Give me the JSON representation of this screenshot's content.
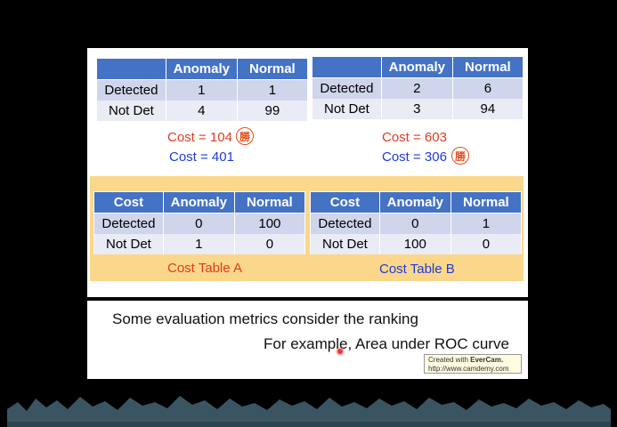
{
  "tables": {
    "top_left": {
      "headers": [
        "",
        "Anomaly",
        "Normal"
      ],
      "rows": [
        [
          "Detected",
          "1",
          "1"
        ],
        [
          "Not Det",
          "4",
          "99"
        ]
      ]
    },
    "top_right": {
      "headers": [
        "",
        "Anomaly",
        "Normal"
      ],
      "rows": [
        [
          "Detected",
          "2",
          "6"
        ],
        [
          "Not Det",
          "3",
          "94"
        ]
      ]
    },
    "cost_a": {
      "headers": [
        "Cost",
        "Anomaly",
        "Normal"
      ],
      "rows": [
        [
          "Detected",
          "0",
          "100"
        ],
        [
          "Not Det",
          "1",
          "0"
        ]
      ]
    },
    "cost_b": {
      "headers": [
        "Cost",
        "Anomaly",
        "Normal"
      ],
      "rows": [
        [
          "Detected",
          "0",
          "1"
        ],
        [
          "Not Det",
          "100",
          "0"
        ]
      ]
    }
  },
  "costs": {
    "left_a": "Cost = 104",
    "left_b": "Cost = 401",
    "right_a": "Cost = 603",
    "right_b": "Cost = 306",
    "win_glyph": "勝"
  },
  "captions": {
    "a": "Cost Table A",
    "b": "Cost Table B"
  },
  "bottom": {
    "line1": "Some evaluation metrics consider the ranking",
    "line2": "For example, Area under ROC curve"
  },
  "watermark": {
    "line1_prefix": "Created with ",
    "line1_brand": "EverCam.",
    "line2": "http://www.camdemy.com"
  },
  "colors": {
    "header_blue": "#4472c4",
    "row_dark": "#cfd5ea",
    "row_light": "#e9ebf5",
    "cost_red": "#e03b1f",
    "cost_blue": "#1f3bd6",
    "panel_orange": "#fbd78c"
  }
}
